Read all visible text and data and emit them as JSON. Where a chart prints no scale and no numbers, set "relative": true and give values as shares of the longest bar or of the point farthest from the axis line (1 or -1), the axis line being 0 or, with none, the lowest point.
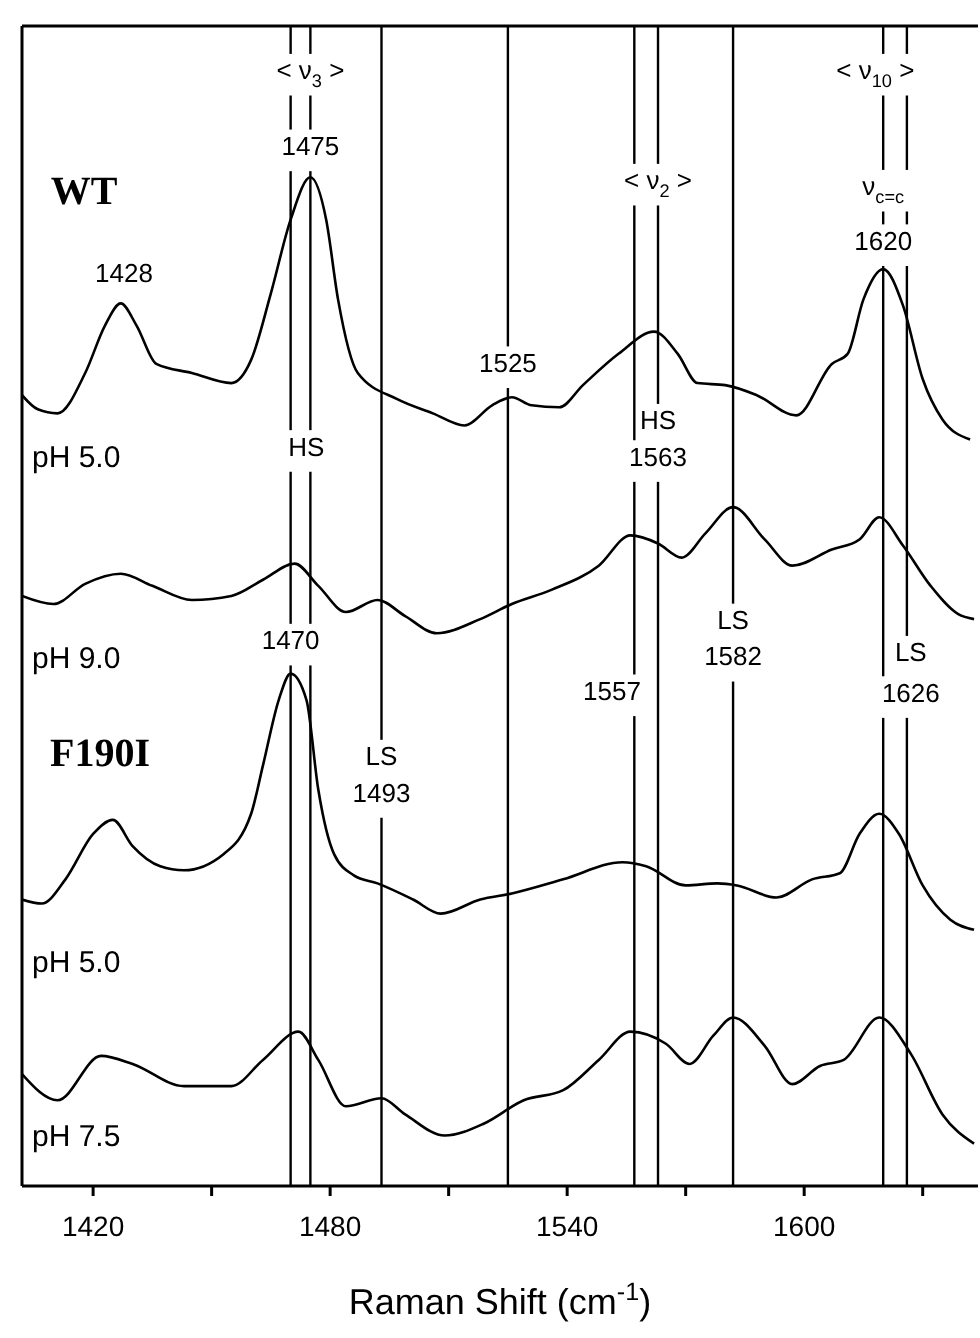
{
  "chart_data": {
    "type": "line",
    "relative": true,
    "xlabel": "Raman Shift (cm$^{-1}$)",
    "xlim": [
      1402,
      1644
    ],
    "xticks": [
      1420,
      {
        "value": 1450,
        "label": null
      },
      1480,
      {
        "value": 1510,
        "label": null
      },
      1540,
      {
        "value": 1570,
        "label": null
      },
      1600,
      {
        "value": 1630,
        "label": null
      }
    ],
    "marker": "none",
    "line_style": "solid",
    "legend": false,
    "grid": false,
    "series": [
      {
        "name": "pH 5.0",
        "color": "#000000",
        "x": [
          1402,
          1406,
          1411,
          1418,
          1423,
          1427,
          1431,
          1436,
          1445,
          1455,
          1460,
          1465,
          1470,
          1475,
          1479,
          1482,
          1487,
          1497,
          1506,
          1514,
          1521,
          1526,
          1531,
          1538,
          1544,
          1553,
          1562,
          1568,
          1573,
          1580,
          1588,
          1598,
          1607,
          1611,
          1615,
          1620,
          1625,
          1630,
          1635,
          1642
        ],
        "values": [
          0.784,
          0.77,
          0.766,
          0.806,
          0.853,
          0.875,
          0.853,
          0.815,
          0.806,
          0.796,
          0.819,
          0.885,
          0.958,
          1.0,
          0.958,
          0.879,
          0.806,
          0.78,
          0.766,
          0.754,
          0.774,
          0.782,
          0.774,
          0.772,
          0.794,
          0.825,
          0.847,
          0.825,
          0.796,
          0.794,
          0.784,
          0.764,
          0.815,
          0.825,
          0.879,
          0.909,
          0.873,
          0.8,
          0.76,
          0.74
        ]
      },
      {
        "name": "pH 9.0",
        "color": "#000000",
        "x": [
          1402,
          1410,
          1418,
          1427,
          1435,
          1445,
          1455,
          1463,
          1471,
          1477,
          1484,
          1492,
          1499,
          1507,
          1518,
          1526,
          1536,
          1548,
          1556,
          1563,
          1569,
          1575,
          1582,
          1590,
          1597,
          1607,
          1614,
          1619,
          1625,
          1632,
          1639,
          1643
        ],
        "values": [
          0.585,
          0.577,
          0.597,
          0.607,
          0.595,
          0.581,
          0.585,
          0.601,
          0.617,
          0.595,
          0.569,
          0.581,
          0.565,
          0.548,
          0.562,
          0.577,
          0.591,
          0.615,
          0.645,
          0.637,
          0.623,
          0.647,
          0.673,
          0.641,
          0.615,
          0.631,
          0.641,
          0.663,
          0.635,
          0.595,
          0.567,
          0.562
        ]
      },
      {
        "name": "pH 5.0",
        "color": "#000000",
        "x": [
          1402,
          1407,
          1413,
          1420,
          1425,
          1430,
          1437,
          1443,
          1453,
          1460,
          1463,
          1467,
          1470,
          1474,
          1477,
          1481,
          1486,
          1492,
          1501,
          1508,
          1518,
          1526,
          1539,
          1554,
          1560,
          1570,
          1578,
          1583,
          1593,
          1602,
          1609,
          1614,
          1619,
          1624,
          1630,
          1637,
          1643
        ],
        "values": [
          0.284,
          0.28,
          0.304,
          0.349,
          0.363,
          0.337,
          0.317,
          0.313,
          0.329,
          0.369,
          0.417,
          0.482,
          0.508,
          0.482,
          0.393,
          0.329,
          0.308,
          0.3,
          0.284,
          0.27,
          0.284,
          0.29,
          0.304,
          0.321,
          0.317,
          0.298,
          0.3,
          0.298,
          0.286,
          0.304,
          0.31,
          0.349,
          0.369,
          0.349,
          0.298,
          0.264,
          0.254
        ]
      },
      {
        "name": "pH 7.5",
        "color": "#000000",
        "x": [
          1402,
          1411,
          1422,
          1430,
          1443,
          1455,
          1463,
          1472,
          1477,
          1484,
          1493,
          1499,
          1509,
          1519,
          1529,
          1539,
          1548,
          1556,
          1565,
          1571,
          1577,
          1582,
          1590,
          1597,
          1604,
          1610,
          1619,
          1627,
          1635,
          1643
        ],
        "values": [
          0.111,
          0.085,
          0.129,
          0.121,
          0.099,
          0.099,
          0.125,
          0.153,
          0.125,
          0.079,
          0.087,
          0.071,
          0.05,
          0.062,
          0.085,
          0.095,
          0.125,
          0.153,
          0.141,
          0.121,
          0.149,
          0.167,
          0.139,
          0.101,
          0.119,
          0.125,
          0.167,
          0.131,
          0.071,
          0.042
        ]
      }
    ],
    "ref_lines": [
      {
        "axis": "x",
        "value": 1470,
        "color": "#000000"
      },
      {
        "axis": "x",
        "value": 1475,
        "color": "#000000"
      },
      {
        "axis": "x",
        "value": 1493,
        "color": "#000000"
      },
      {
        "axis": "x",
        "value": 1525,
        "color": "#000000"
      },
      {
        "axis": "x",
        "value": 1557,
        "color": "#000000"
      },
      {
        "axis": "x",
        "value": 1563,
        "color": "#000000"
      },
      {
        "axis": "x",
        "value": 1582,
        "color": "#000000"
      },
      {
        "axis": "x",
        "value": 1620,
        "color": "#000000"
      },
      {
        "axis": "x",
        "value": 1626,
        "color": "#000000"
      }
    ],
    "annotations": [
      {
        "text": "< ν$_{3}$ >",
        "x": 1475,
        "y": 1.103
      },
      {
        "text": "< ν$_{10}$ >",
        "x": 1618,
        "y": 1.103
      },
      {
        "text": "< ν$_{2}$ >",
        "x": 1563,
        "y": 0.994
      },
      {
        "text": "ν$_{c=c}$",
        "x": 1620,
        "y": 0.988
      },
      "WT",
      "F190I",
      "1428",
      {
        "text": "1475",
        "x": 1475,
        "y": 1.028
      },
      {
        "text": "1525",
        "x": 1525,
        "y": 0.813
      },
      {
        "text": "1620",
        "x": 1620,
        "y": 0.934
      },
      {
        "text": "HS",
        "x": 1474,
        "y": 0.73
      },
      {
        "text": "HS",
        "x": 1563,
        "y": 0.756
      },
      {
        "text": "1563",
        "x": 1563,
        "y": 0.72
      },
      {
        "text": "1470",
        "x": 1470,
        "y": 0.538
      },
      {
        "text": "LS",
        "x": 1493,
        "y": 0.423
      },
      {
        "text": "1493",
        "x": 1493,
        "y": 0.387
      },
      "1557",
      {
        "text": "LS",
        "x": 1582,
        "y": 0.558
      },
      {
        "text": "1582",
        "x": 1582,
        "y": 0.522
      },
      {
        "text": "LS",
        "x": 1627,
        "y": 0.526
      },
      {
        "text": "1626",
        "x": 1627,
        "y": 0.486
      }
    ]
  }
}
